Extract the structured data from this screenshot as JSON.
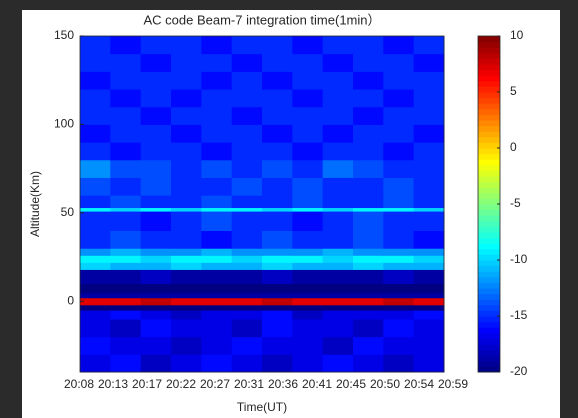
{
  "chart_data": {
    "type": "heatmap",
    "title": "AC code Beam-7  integration time(1min）",
    "xlabel": "Time(UT)",
    "ylabel": "Altitude(Km)",
    "categories": [
      "20:08",
      "20:13",
      "20:17",
      "20:22",
      "20:27",
      "20:31",
      "20:36",
      "20:41",
      "20:45",
      "20:50",
      "20:54",
      "20:59"
    ],
    "y_bins": [
      -40,
      -30,
      -20,
      -10,
      -5,
      -2,
      2,
      5,
      10,
      18,
      22,
      26,
      30,
      40,
      51,
      53,
      60,
      70,
      80,
      90,
      100,
      110,
      120,
      130,
      140,
      150
    ],
    "ylim": [
      -40,
      150
    ],
    "yticks": [
      0,
      50,
      100,
      150
    ],
    "colormap": "jet",
    "zlim": [
      -20,
      10
    ],
    "zticks": [
      -20,
      -15,
      -10,
      -5,
      0,
      5,
      10
    ],
    "z": [
      [
        -17,
        -16,
        -18,
        -17,
        -16,
        -17,
        -18,
        -17,
        -16,
        -17,
        -18,
        -17
      ],
      [
        -16,
        -17,
        -17,
        -18,
        -17,
        -16,
        -17,
        -17,
        -18,
        -16,
        -17,
        -17
      ],
      [
        -17,
        -18,
        -16,
        -17,
        -17,
        -18,
        -16,
        -17,
        -17,
        -18,
        -16,
        -17
      ],
      [
        -17,
        -16,
        -17,
        -18,
        -17,
        -17,
        -16,
        -18,
        -17,
        -17,
        -17,
        -16
      ],
      [
        -20,
        -20,
        -20,
        -20,
        -20,
        -20,
        -20,
        -20,
        -20,
        -20,
        -20,
        -20
      ],
      [
        7,
        7,
        8,
        7,
        7,
        7,
        8,
        7,
        7,
        7,
        8,
        7
      ],
      [
        -19,
        -19,
        -19,
        -19,
        -19,
        -19,
        -19,
        -19,
        -19,
        -19,
        -19,
        -19
      ],
      [
        -20,
        -20,
        -20,
        -20,
        -20,
        -20,
        -20,
        -20,
        -20,
        -20,
        -20,
        -20
      ],
      [
        -19,
        -19,
        -18,
        -19,
        -19,
        -19,
        -18,
        -19,
        -19,
        -19,
        -18,
        -19
      ],
      [
        -10,
        -11,
        -11,
        -10,
        -11,
        -11,
        -10,
        -11,
        -11,
        -10,
        -11,
        -11
      ],
      [
        -9,
        -9,
        -10,
        -9,
        -9,
        -10,
        -9,
        -9,
        -10,
        -9,
        -9,
        -10
      ],
      [
        -12,
        -11,
        -12,
        -12,
        -11,
        -12,
        -12,
        -12,
        -11,
        -12,
        -12,
        -12
      ],
      [
        -15,
        -14,
        -15,
        -15,
        -16,
        -15,
        -14,
        -15,
        -15,
        -14,
        -15,
        -16
      ],
      [
        -15,
        -15,
        -16,
        -15,
        -14,
        -15,
        -15,
        -16,
        -15,
        -14,
        -15,
        -15
      ],
      [
        -9,
        -10,
        -9,
        -10,
        -9,
        -9,
        -10,
        -9,
        -10,
        -9,
        -9,
        -10
      ],
      [
        -15,
        -14,
        -15,
        -15,
        -14,
        -15,
        -15,
        -14,
        -15,
        -15,
        -14,
        -15
      ],
      [
        -14,
        -15,
        -14,
        -15,
        -15,
        -14,
        -15,
        -14,
        -15,
        -15,
        -14,
        -15
      ],
      [
        -12,
        -14,
        -14,
        -15,
        -14,
        -15,
        -14,
        -15,
        -13,
        -14,
        -15,
        -15
      ],
      [
        -15,
        -16,
        -15,
        -15,
        -16,
        -15,
        -15,
        -16,
        -15,
        -15,
        -16,
        -15
      ],
      [
        -16,
        -15,
        -15,
        -16,
        -15,
        -15,
        -16,
        -15,
        -16,
        -15,
        -15,
        -16
      ],
      [
        -15,
        -15,
        -16,
        -15,
        -15,
        -16,
        -15,
        -15,
        -15,
        -16,
        -15,
        -15
      ],
      [
        -15,
        -16,
        -15,
        -16,
        -15,
        -15,
        -15,
        -16,
        -15,
        -15,
        -16,
        -15
      ],
      [
        -16,
        -15,
        -15,
        -15,
        -16,
        -15,
        -16,
        -15,
        -15,
        -16,
        -15,
        -15
      ],
      [
        -15,
        -15,
        -16,
        -15,
        -15,
        -16,
        -15,
        -15,
        -16,
        -15,
        -15,
        -16
      ],
      [
        -15,
        -16,
        -15,
        -15,
        -16,
        -15,
        -15,
        -16,
        -15,
        -15,
        -16,
        -15
      ]
    ]
  }
}
